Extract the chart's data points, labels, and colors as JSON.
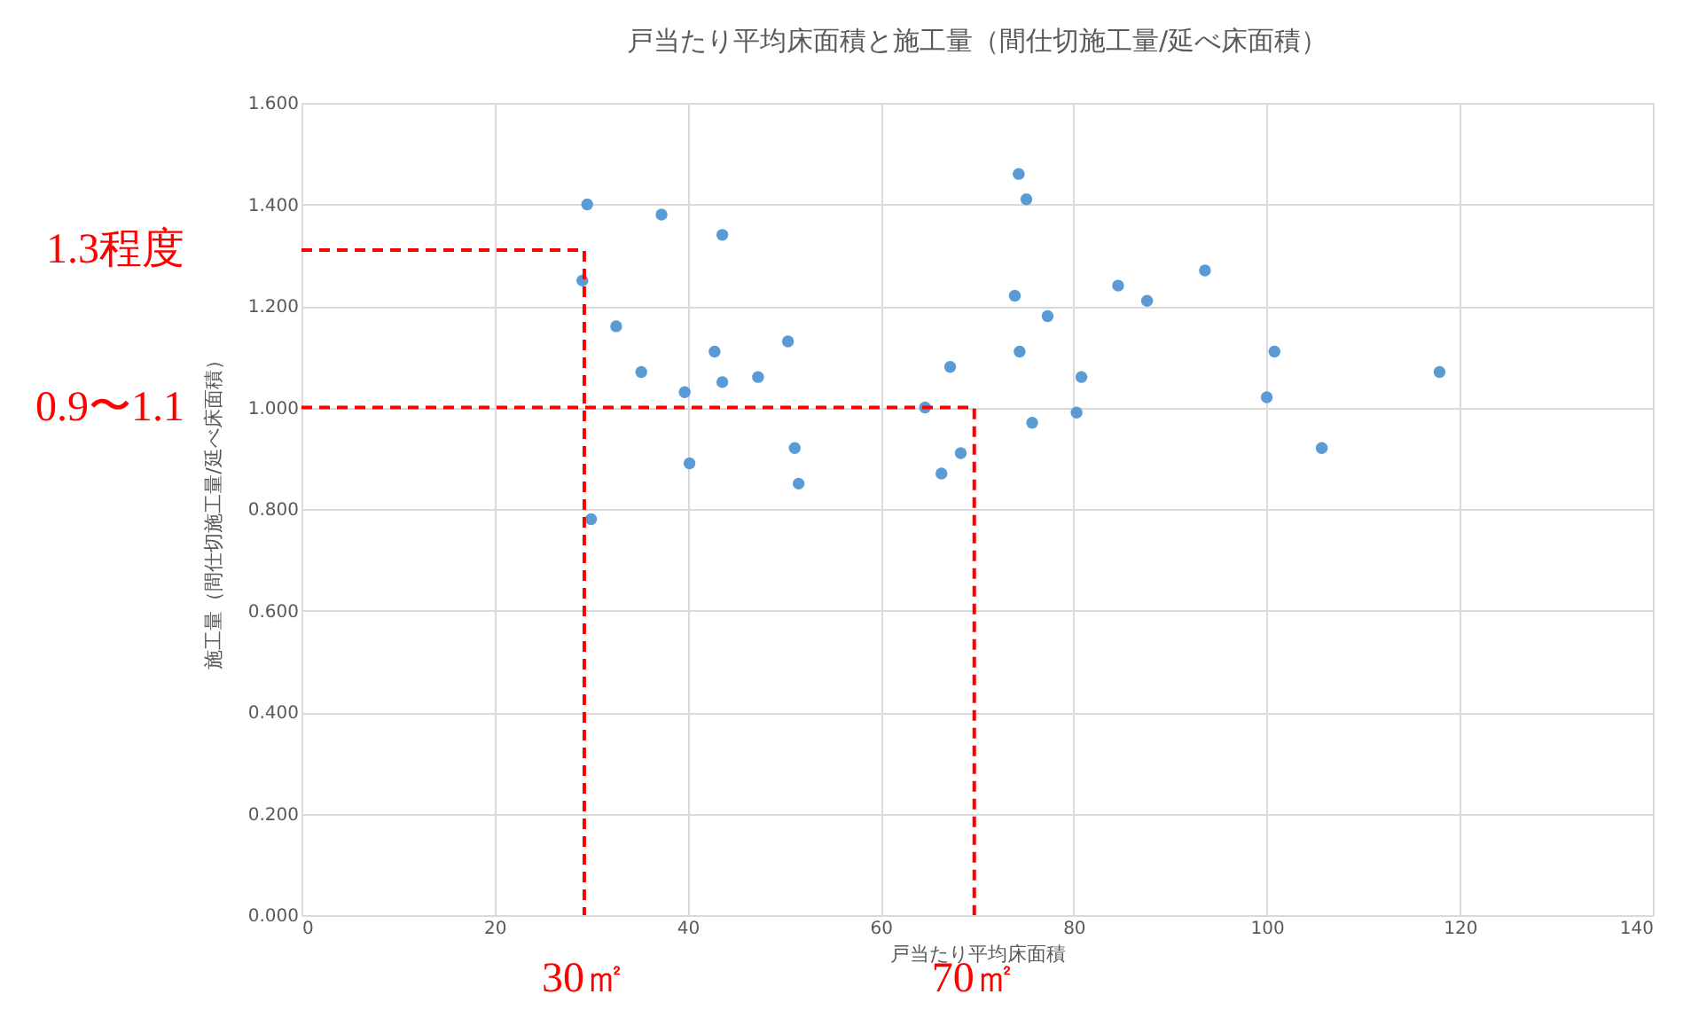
{
  "chart_data": {
    "type": "scatter",
    "title": "戸当たり平均床面積と施工量（間仕切施工量/延べ床面積）",
    "xlabel": "戸当たり平均床面積",
    "ylabel": "施工量（間仕切施工量/延べ床面積）",
    "xlim": [
      0,
      140
    ],
    "xticks": [
      0,
      20,
      40,
      60,
      80,
      100,
      120,
      140
    ],
    "ylim": [
      0,
      1.6
    ],
    "yticks": [
      {
        "value": 0,
        "label": "0.000"
      },
      {
        "value": 0.2,
        "label": "0.200"
      },
      {
        "value": 0.4,
        "label": "0.400"
      },
      {
        "value": 0.6,
        "label": "0.600"
      },
      {
        "value": 0.8,
        "label": "0.800"
      },
      {
        "value": 1,
        "label": "1.000"
      },
      {
        "value": 1.2,
        "label": "1.200"
      },
      {
        "value": 1.4,
        "label": "1.400"
      },
      {
        "value": 1.6,
        "label": "1.600"
      }
    ],
    "grid": true,
    "marker": "circle",
    "series": [
      {
        "color": "#5b9bd5",
        "x": [
          29.6,
          37.3,
          43.6,
          29.1,
          32.6,
          35.2,
          42.8,
          50.4,
          39.7,
          43.6,
          47.3,
          40.2,
          51.1,
          51.5,
          30.0,
          74.3,
          75.1,
          73.9,
          77.3,
          84.6,
          87.6,
          93.6,
          74.4,
          67.2,
          80.8,
          64.6,
          80.3,
          75.7,
          68.3,
          66.3,
          100.8,
          100.0,
          105.7,
          117.9
        ],
        "values": [
          1.4,
          1.38,
          1.34,
          1.25,
          1.16,
          1.07,
          1.11,
          1.13,
          1.03,
          1.05,
          1.06,
          0.89,
          0.92,
          0.85,
          0.78,
          1.46,
          1.41,
          1.22,
          1.18,
          1.24,
          1.21,
          1.27,
          1.11,
          1.08,
          1.06,
          1.0,
          0.99,
          0.97,
          0.91,
          0.87,
          1.11,
          1.02,
          0.92,
          1.07
        ]
      },
      {
        "type": "line",
        "color": "#ff0000",
        "line_style": "dashed",
        "marker": "none",
        "x": [
          0,
          29.3,
          29.3
        ],
        "values": [
          1.31,
          1.31,
          0
        ]
      },
      {
        "type": "line",
        "color": "#ff0000",
        "line_style": "dashed",
        "marker": "none",
        "x": [
          0,
          69.7,
          69.7
        ],
        "values": [
          1.0,
          1.0,
          0
        ]
      }
    ],
    "annotations": [
      {
        "text": "1.3程度",
        "x": 0,
        "y": 1.31
      },
      {
        "text": "0.9〜1.1",
        "x": 0,
        "y": 1.0
      },
      {
        "text": "30㎡",
        "x": 29.3,
        "y": 0
      },
      {
        "text": "70㎡",
        "x": 69.7,
        "y": 0
      }
    ]
  }
}
